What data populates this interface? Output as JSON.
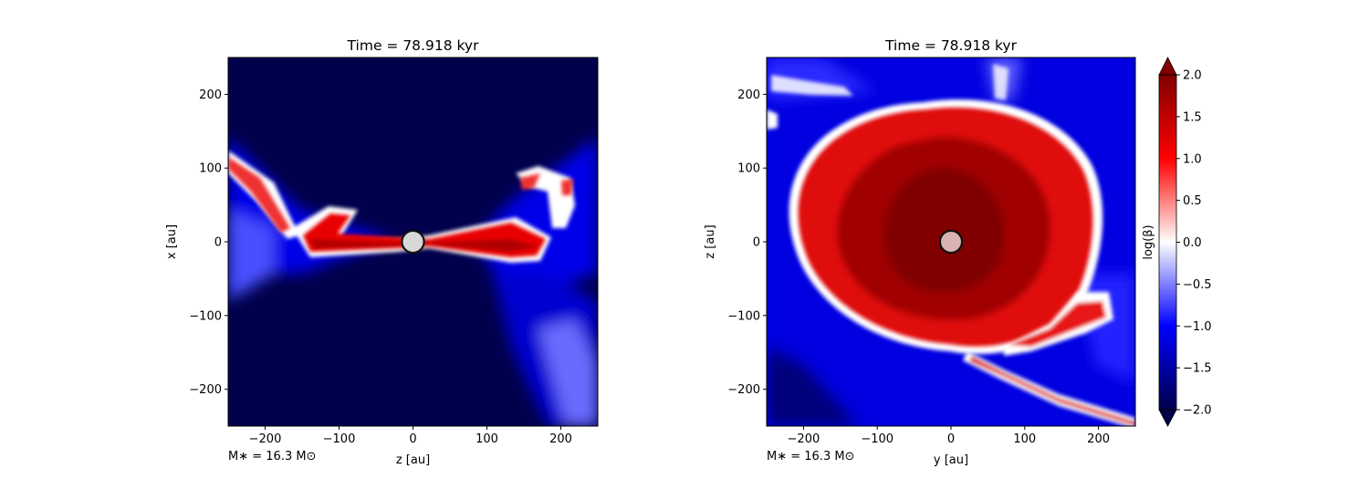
{
  "chart_data": [
    {
      "type": "heatmap",
      "title": "Time = 78.918 kyr",
      "xlabel": "z [au]",
      "ylabel": "x [au]",
      "xlim": [
        -250,
        250
      ],
      "ylim": [
        -250,
        250
      ],
      "xticks": [
        -200,
        -100,
        0,
        100,
        200
      ],
      "yticks": [
        -200,
        -100,
        0,
        100,
        200
      ],
      "annotation": "M∗ = 16.3 M⊙",
      "star": {
        "x": 0,
        "y": 0,
        "radius_au": 18
      },
      "grid": false
    },
    {
      "type": "heatmap",
      "title": "Time = 78.918 kyr",
      "xlabel": "y [au]",
      "ylabel": "z [au]",
      "xlim": [
        -250,
        250
      ],
      "ylim": [
        -250,
        250
      ],
      "xticks": [
        -200,
        -100,
        0,
        100,
        200
      ],
      "yticks": [
        -200,
        -100,
        0,
        100,
        200
      ],
      "annotation": "M∗ = 16.3 M⊙",
      "star": {
        "x": 0,
        "y": 0,
        "radius_au": 18
      },
      "grid": false
    }
  ],
  "colorbar": {
    "label": "log(β)",
    "range": [
      -2.0,
      2.0
    ],
    "ticks": [
      "2.0",
      "1.5",
      "1.0",
      "0.5",
      "0.0",
      "−0.5",
      "−1.0",
      "−1.5",
      "−2.0"
    ],
    "tick_values": [
      2.0,
      1.5,
      1.0,
      0.5,
      0.0,
      -0.5,
      -1.0,
      -1.5,
      -2.0
    ],
    "colormap": "seismic",
    "colors": {
      "min": "#00004c",
      "mid_low": "#0000ff",
      "center": "#ffffff",
      "mid_high": "#ff0000",
      "max": "#800000"
    },
    "extend": "both"
  }
}
